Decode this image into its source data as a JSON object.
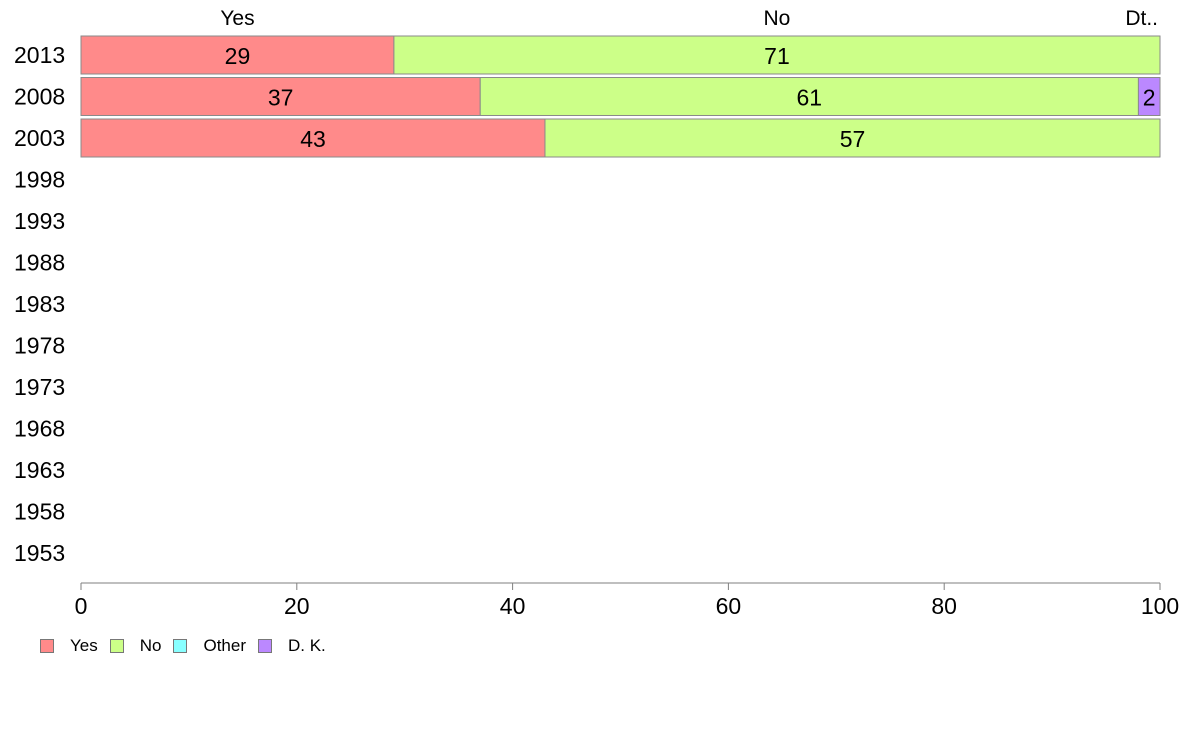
{
  "chart_data": {
    "type": "bar",
    "orientation": "horizontal",
    "stacked": true,
    "categories": [
      "2013",
      "2008",
      "2003",
      "1998",
      "1993",
      "1988",
      "1983",
      "1978",
      "1973",
      "1968",
      "1963",
      "1958",
      "1953"
    ],
    "series": [
      {
        "name": "Yes",
        "color": "#ff8a8a",
        "values": [
          29,
          37,
          43,
          null,
          null,
          null,
          null,
          null,
          null,
          null,
          null,
          null,
          null
        ]
      },
      {
        "name": "No",
        "color": "#ccff88",
        "values": [
          71,
          61,
          57,
          null,
          null,
          null,
          null,
          null,
          null,
          null,
          null,
          null,
          null
        ]
      },
      {
        "name": "Other",
        "color": "#88ffff",
        "values": [
          0,
          0,
          0,
          null,
          null,
          null,
          null,
          null,
          null,
          null,
          null,
          null,
          null
        ]
      },
      {
        "name": "D. K.",
        "color": "#bb88ff",
        "values": [
          0,
          2,
          0,
          null,
          null,
          null,
          null,
          null,
          null,
          null,
          null,
          null,
          null
        ]
      }
    ],
    "top_labels": [
      "Yes",
      "No",
      "Dt.."
    ],
    "xlim": [
      0,
      100
    ],
    "xticks": [
      "0",
      "20",
      "40",
      "60",
      "80",
      "100"
    ],
    "grid": false,
    "legend_position": "bottom-left"
  }
}
